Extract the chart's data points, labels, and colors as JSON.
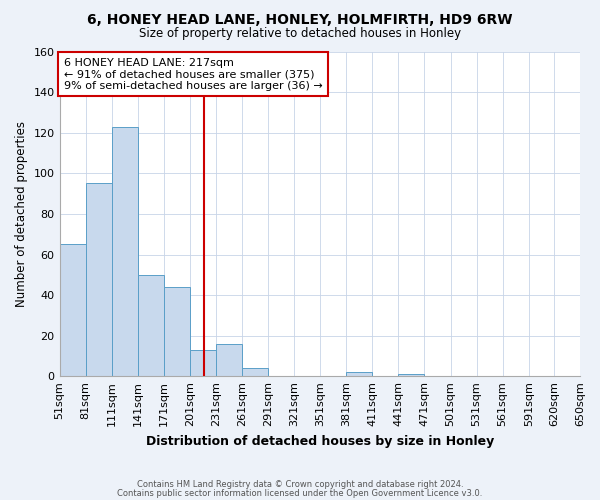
{
  "title1": "6, HONEY HEAD LANE, HONLEY, HOLMFIRTH, HD9 6RW",
  "title2": "Size of property relative to detached houses in Honley",
  "xlabel": "Distribution of detached houses by size in Honley",
  "ylabel": "Number of detached properties",
  "bin_edges": [
    51,
    81,
    111,
    141,
    171,
    201,
    231,
    261,
    291,
    321,
    351,
    381,
    411,
    441,
    471,
    501,
    531,
    561,
    591,
    620,
    650
  ],
  "bin_labels": [
    "51sqm",
    "81sqm",
    "111sqm",
    "141sqm",
    "171sqm",
    "201sqm",
    "231sqm",
    "261sqm",
    "291sqm",
    "321sqm",
    "351sqm",
    "381sqm",
    "411sqm",
    "441sqm",
    "471sqm",
    "501sqm",
    "531sqm",
    "561sqm",
    "591sqm",
    "620sqm",
    "650sqm"
  ],
  "counts": [
    65,
    95,
    123,
    50,
    44,
    13,
    16,
    4,
    0,
    0,
    0,
    2,
    0,
    1,
    0,
    0,
    0,
    0,
    0,
    0
  ],
  "bar_color": "#c8d9ed",
  "bar_edge_color": "#5a9fc8",
  "property_size": 217,
  "vline_color": "#cc0000",
  "annotation_line1": "6 HONEY HEAD LANE: 217sqm",
  "annotation_line2": "← 91% of detached houses are smaller (375)",
  "annotation_line3": "9% of semi-detached houses are larger (36) →",
  "annotation_box_edge": "#cc0000",
  "ylim": [
    0,
    160
  ],
  "yticks": [
    0,
    20,
    40,
    60,
    80,
    100,
    120,
    140,
    160
  ],
  "footer1": "Contains HM Land Registry data © Crown copyright and database right 2024.",
  "footer2": "Contains public sector information licensed under the Open Government Licence v3.0.",
  "bg_color": "#edf2f9",
  "plot_bg_color": "#ffffff",
  "grid_color": "#c8d4e8"
}
